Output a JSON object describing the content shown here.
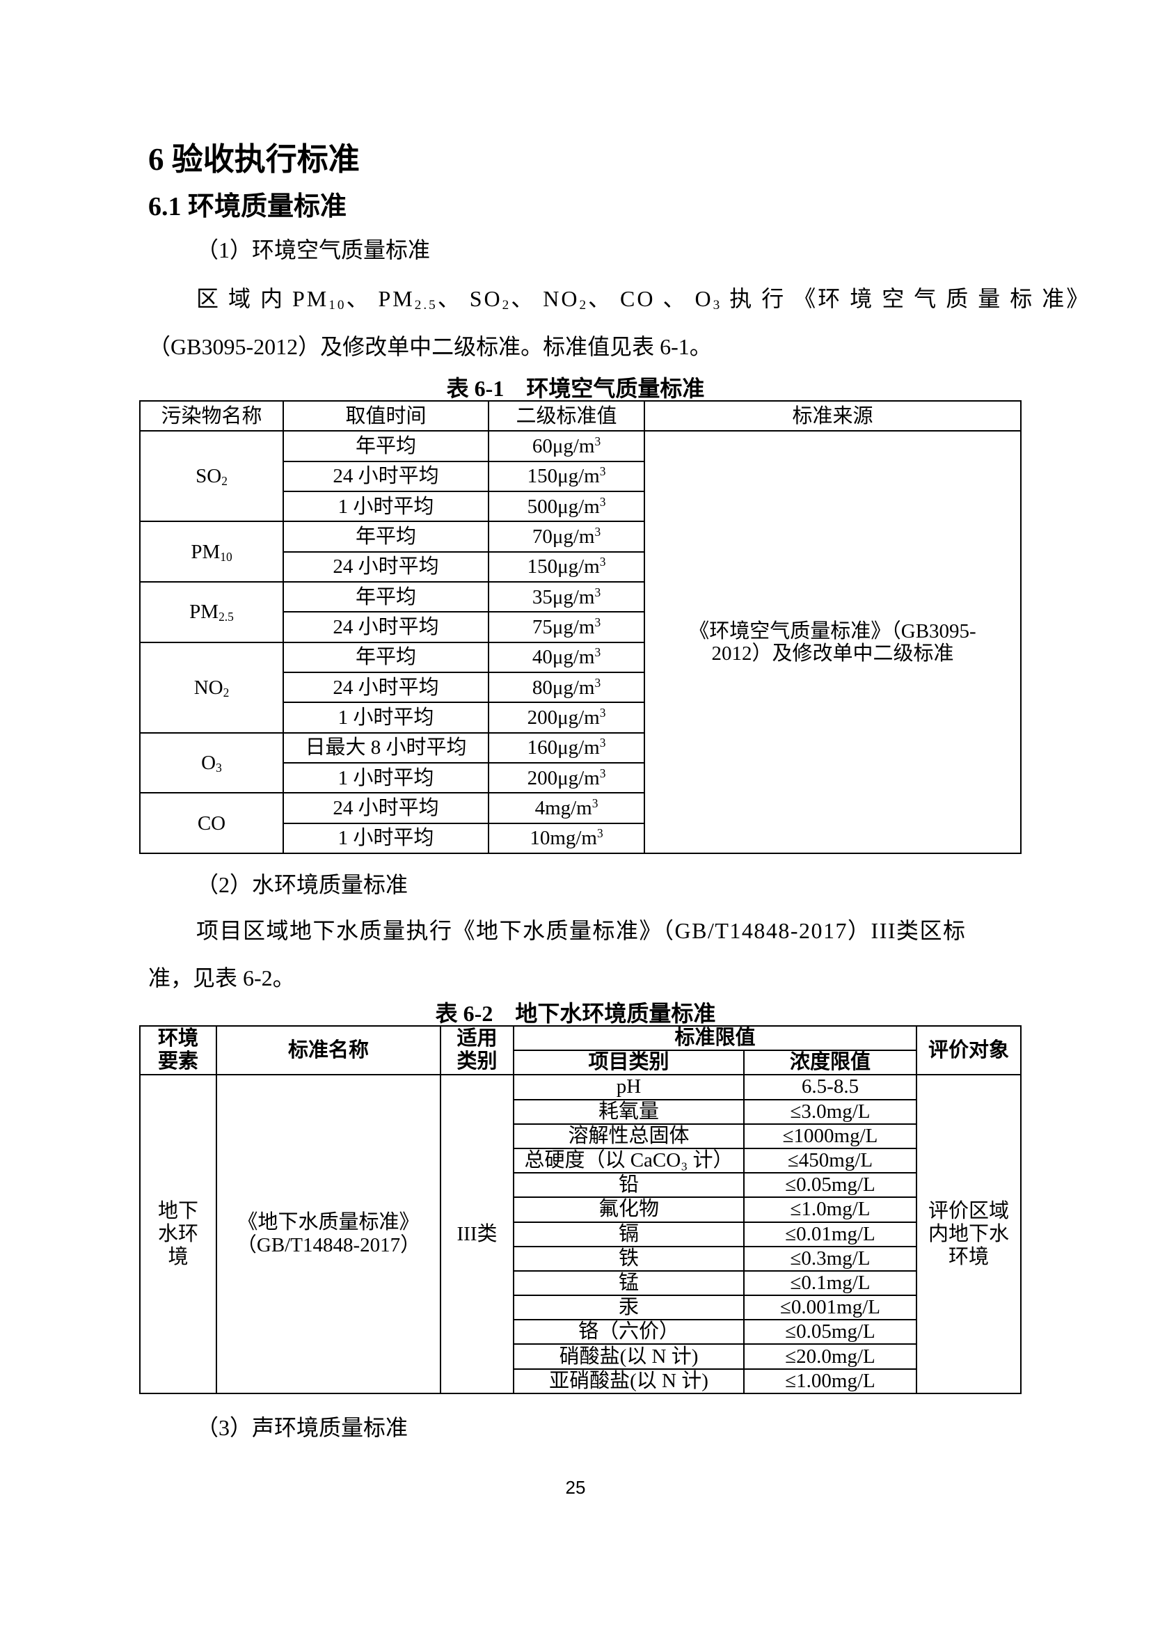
{
  "heading1": "6 验收执行标准",
  "heading2": "6.1 环境质量标准",
  "sub1": "（1）环境空气质量标准",
  "para1_line1": [
    {
      "t": "区 域 内 PM"
    },
    {
      "s": "10"
    },
    {
      "t": "、 PM"
    },
    {
      "s": "2.5"
    },
    {
      "t": "、 SO"
    },
    {
      "s": "2"
    },
    {
      "t": "、 NO"
    },
    {
      "s": "2"
    },
    {
      "t": "、 CO 、 O"
    },
    {
      "s": "3"
    },
    {
      "t": " 执 行 《环 境 空 气 质 量 标 准》"
    }
  ],
  "para1_line2": "（GB3095-2012）及修改单中二级标准。标准值见表 6-1。",
  "table1": {
    "caption": "表 6-1　环境空气质量标准",
    "headers": [
      "污染物名称",
      "取值时间",
      "二级标准值",
      "标准来源"
    ],
    "source": "《环境空气质量标准》（GB3095-2012）及修改单中二级标准",
    "groups": [
      {
        "name": "SO",
        "sub": "2",
        "rows": [
          [
            "年平均",
            "60μg/m"
          ],
          [
            "24 小时平均",
            "150μg/m"
          ],
          [
            "1 小时平均",
            "500μg/m"
          ]
        ]
      },
      {
        "name": "PM",
        "sub": "10",
        "rows": [
          [
            "年平均",
            "70μg/m"
          ],
          [
            "24 小时平均",
            "150μg/m"
          ]
        ]
      },
      {
        "name": "PM",
        "sub": "2.5",
        "rows": [
          [
            "年平均",
            "35μg/m"
          ],
          [
            "24 小时平均",
            "75μg/m"
          ]
        ]
      },
      {
        "name": "NO",
        "sub": "2",
        "rows": [
          [
            "年平均",
            "40μg/m"
          ],
          [
            "24 小时平均",
            "80μg/m"
          ],
          [
            "1 小时平均",
            "200μg/m"
          ]
        ]
      },
      {
        "name": "O",
        "sub": "3",
        "rows": [
          [
            "日最大 8 小时平均",
            "160μg/m"
          ],
          [
            "1 小时平均",
            "200μg/m"
          ]
        ]
      },
      {
        "name": "CO",
        "sub": "",
        "rows": [
          [
            "24 小时平均",
            "4mg/m"
          ],
          [
            "1 小时平均",
            "10mg/m"
          ]
        ]
      }
    ],
    "unit_sup": "3"
  },
  "sub2": "（2）水环境质量标准",
  "para2_line1": "项目区域地下水质量执行《地下水质量标准》（GB/T14848-2017）III类区标",
  "para2_line2": "准，见表 6-2。",
  "table2": {
    "caption": "表 6-2　地下水环境质量标准",
    "headers": {
      "element": "环境要素",
      "name": "标准名称",
      "category": "适用类别",
      "limit": "标准限值",
      "item": "项目类别",
      "conc": "浓度限值",
      "target": "评价对象"
    },
    "element": "地下水环境",
    "name": "《地下水质量标准》（GB/T14848-2017）",
    "category": "III类",
    "target": "评价区域内地下水环境",
    "rows": [
      [
        "pH",
        "6.5-8.5"
      ],
      [
        "耗氧量",
        "≤3.0mg/L"
      ],
      [
        "溶解性总固体",
        "≤1000mg/L"
      ],
      [
        "总硬度（以 CaCO₃ 计）",
        "≤450mg/L"
      ],
      [
        "铅",
        "≤0.05mg/L"
      ],
      [
        "氟化物",
        "≤1.0mg/L"
      ],
      [
        "镉",
        "≤0.01mg/L"
      ],
      [
        "铁",
        "≤0.3mg/L"
      ],
      [
        "锰",
        "≤0.1mg/L"
      ],
      [
        "汞",
        "≤0.001mg/L"
      ],
      [
        "铬（六价）",
        "≤0.05mg/L"
      ],
      [
        "硝酸盐(以 N 计)",
        "≤20.0mg/L"
      ],
      [
        "亚硝酸盐(以 N 计)",
        "≤1.00mg/L"
      ]
    ]
  },
  "sub3": "（3）声环境质量标准",
  "page_number": "25"
}
